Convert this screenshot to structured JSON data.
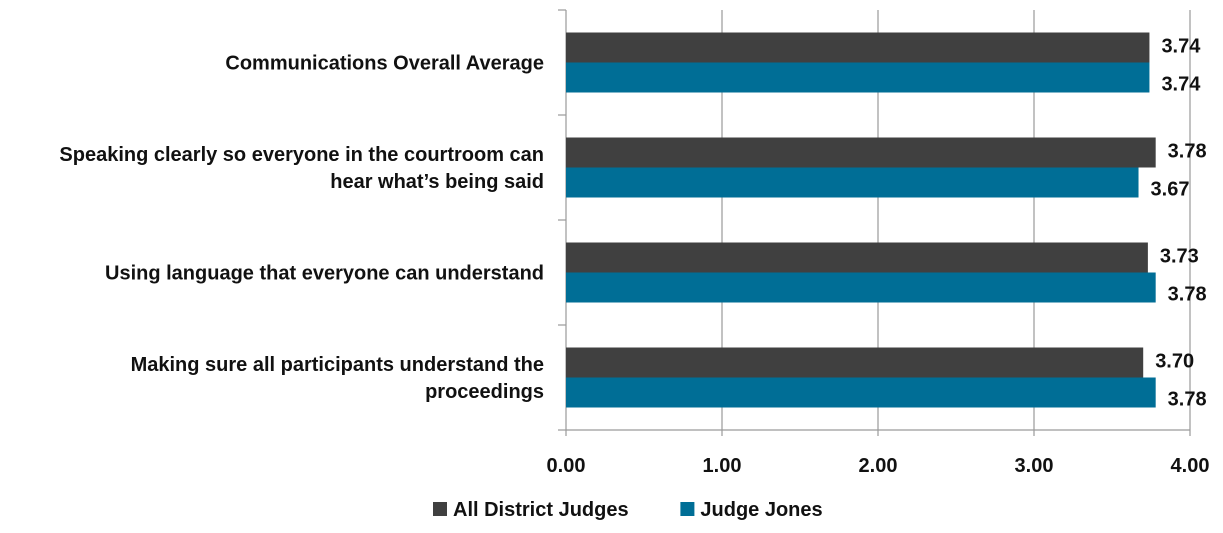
{
  "chart_data": {
    "type": "bar",
    "orientation": "horizontal",
    "categories": [
      [
        "Communications Overall Average"
      ],
      [
        "Speaking clearly so everyone in the courtroom can",
        "hear what’s being said"
      ],
      [
        "Using language that everyone can understand"
      ],
      [
        "Making sure all participants understand the",
        "proceedings"
      ]
    ],
    "series": [
      {
        "name": "All District Judges",
        "color": "#404040",
        "values": [
          3.74,
          3.78,
          3.73,
          3.7
        ],
        "labels": [
          "3.74",
          "3.78",
          "3.73",
          "3.70"
        ]
      },
      {
        "name": "Judge Jones",
        "color": "#006e96",
        "values": [
          3.74,
          3.67,
          3.78,
          3.78
        ],
        "labels": [
          "3.74",
          "3.67",
          "3.78",
          "3.78"
        ]
      }
    ],
    "xlim": [
      0,
      4
    ],
    "xticks": [
      "0.00",
      "1.00",
      "2.00",
      "3.00",
      "4.00"
    ],
    "grid": true,
    "legend_position": "bottom",
    "title": "",
    "xlabel": "",
    "ylabel": ""
  }
}
